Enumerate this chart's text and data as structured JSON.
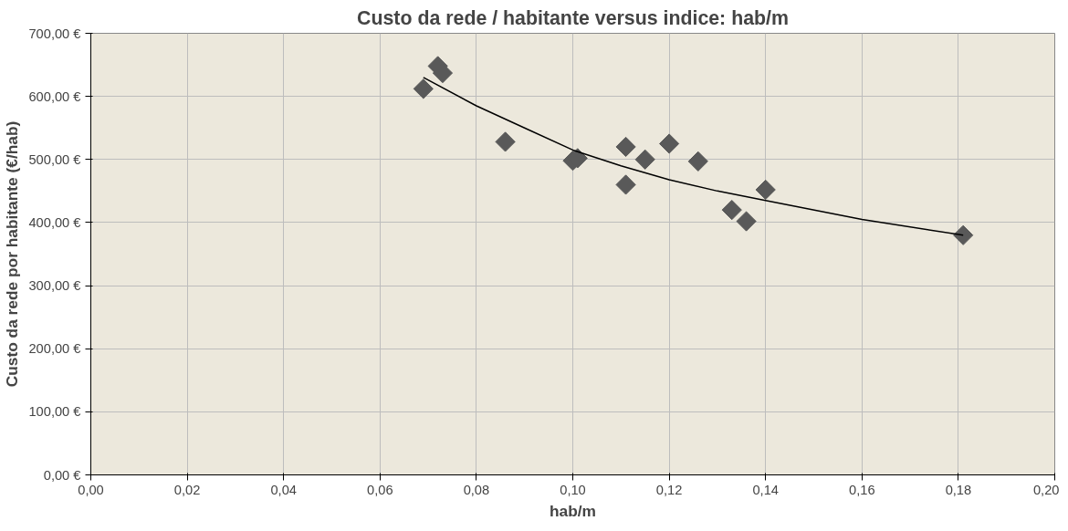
{
  "chart_data": {
    "type": "scatter",
    "title": "Custo da rede / habitante versus indice: hab/m",
    "xlabel": "hab/m",
    "ylabel": "Custo da rede por habitante (€/hab)",
    "xlim": [
      0,
      0.2
    ],
    "ylim": [
      0,
      700
    ],
    "xticks": [
      {
        "value": 0,
        "label": "0,00"
      },
      {
        "value": 0.02,
        "label": "0,02"
      },
      {
        "value": 0.04,
        "label": "0,04"
      },
      {
        "value": 0.06,
        "label": "0,06"
      },
      {
        "value": 0.08,
        "label": "0,08"
      },
      {
        "value": 0.1,
        "label": "0,10"
      },
      {
        "value": 0.12,
        "label": "0,12"
      },
      {
        "value": 0.14,
        "label": "0,14"
      },
      {
        "value": 0.16,
        "label": "0,16"
      },
      {
        "value": 0.18,
        "label": "0,18"
      },
      {
        "value": 0.2,
        "label": "0,20"
      }
    ],
    "yticks": [
      {
        "value": 0,
        "label": "0,00 €"
      },
      {
        "value": 100,
        "label": "100,00 €"
      },
      {
        "value": 200,
        "label": "200,00 €"
      },
      {
        "value": 300,
        "label": "300,00 €"
      },
      {
        "value": 400,
        "label": "400,00 €"
      },
      {
        "value": 500,
        "label": "500,00 €"
      },
      {
        "value": 600,
        "label": "600,00 €"
      },
      {
        "value": 700,
        "label": "700,00 €"
      }
    ],
    "grid": true,
    "series": [
      {
        "marker": "diamond",
        "color": "#595959",
        "x": [
          0.069,
          0.072,
          0.073,
          0.086,
          0.1,
          0.101,
          0.111,
          0.111,
          0.115,
          0.12,
          0.126,
          0.133,
          0.136,
          0.14,
          0.181
        ],
        "values": [
          612,
          648,
          637,
          528,
          498,
          502,
          520,
          460,
          500,
          525,
          497,
          420,
          402,
          452,
          380
        ]
      },
      {
        "type": "line",
        "color": "#000000",
        "x": [
          0.069,
          0.08,
          0.09,
          0.1,
          0.11,
          0.12,
          0.13,
          0.14,
          0.16,
          0.181
        ],
        "values": [
          630,
          585,
          550,
          515,
          490,
          468,
          450,
          435,
          405,
          380
        ]
      }
    ]
  }
}
